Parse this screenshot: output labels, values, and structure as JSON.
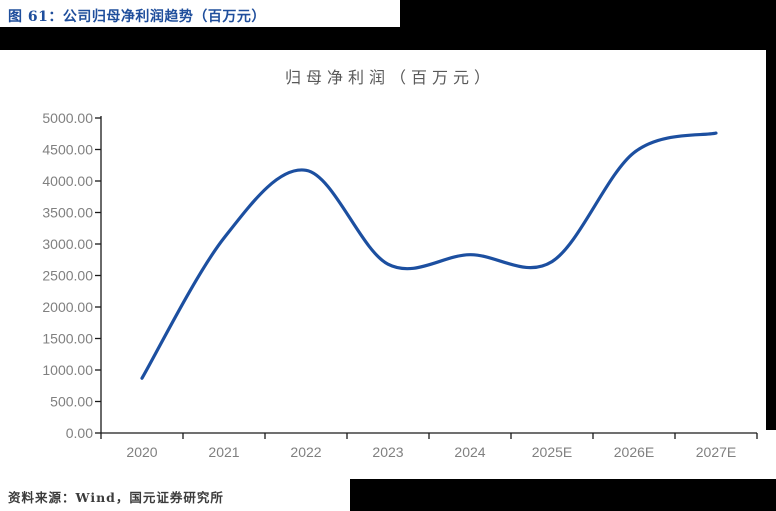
{
  "header": {
    "caption": "图 61：公司归母净利润趋势（百万元）"
  },
  "chart": {
    "title": "归母净利润（百万元）"
  },
  "chart_data": {
    "type": "line",
    "title": "归母净利润（百万元）",
    "categories": [
      "2020",
      "2021",
      "2022",
      "2023",
      "2024",
      "2025E",
      "2026E",
      "2027E"
    ],
    "series": [
      {
        "name": "归母净利润",
        "values": [
          870,
          3095,
          4170,
          2680,
          2830,
          2720,
          4450,
          4760
        ]
      }
    ],
    "ylim": [
      0,
      5000
    ],
    "ytick_step": 500,
    "ytick_labels": [
      "0.00",
      "500.00",
      "1000.00",
      "1500.00",
      "2000.00",
      "2500.00",
      "3000.00",
      "3500.00",
      "4000.00",
      "4500.00",
      "5000.00"
    ],
    "xlabel": "",
    "ylabel": "",
    "grid": false,
    "legend": "none",
    "smooth": true,
    "line_color": "#1c4fa0",
    "axis_color": "#1a1a1a",
    "tick_label_color": "#808080"
  },
  "footer": {
    "source": "资料来源：Wind，国元证券研究所"
  },
  "colors": {
    "caption_blue": "#1f4e9c",
    "chart_title_gray": "#595959",
    "line_blue": "#1c4fa0",
    "divider_black": "#000000"
  }
}
